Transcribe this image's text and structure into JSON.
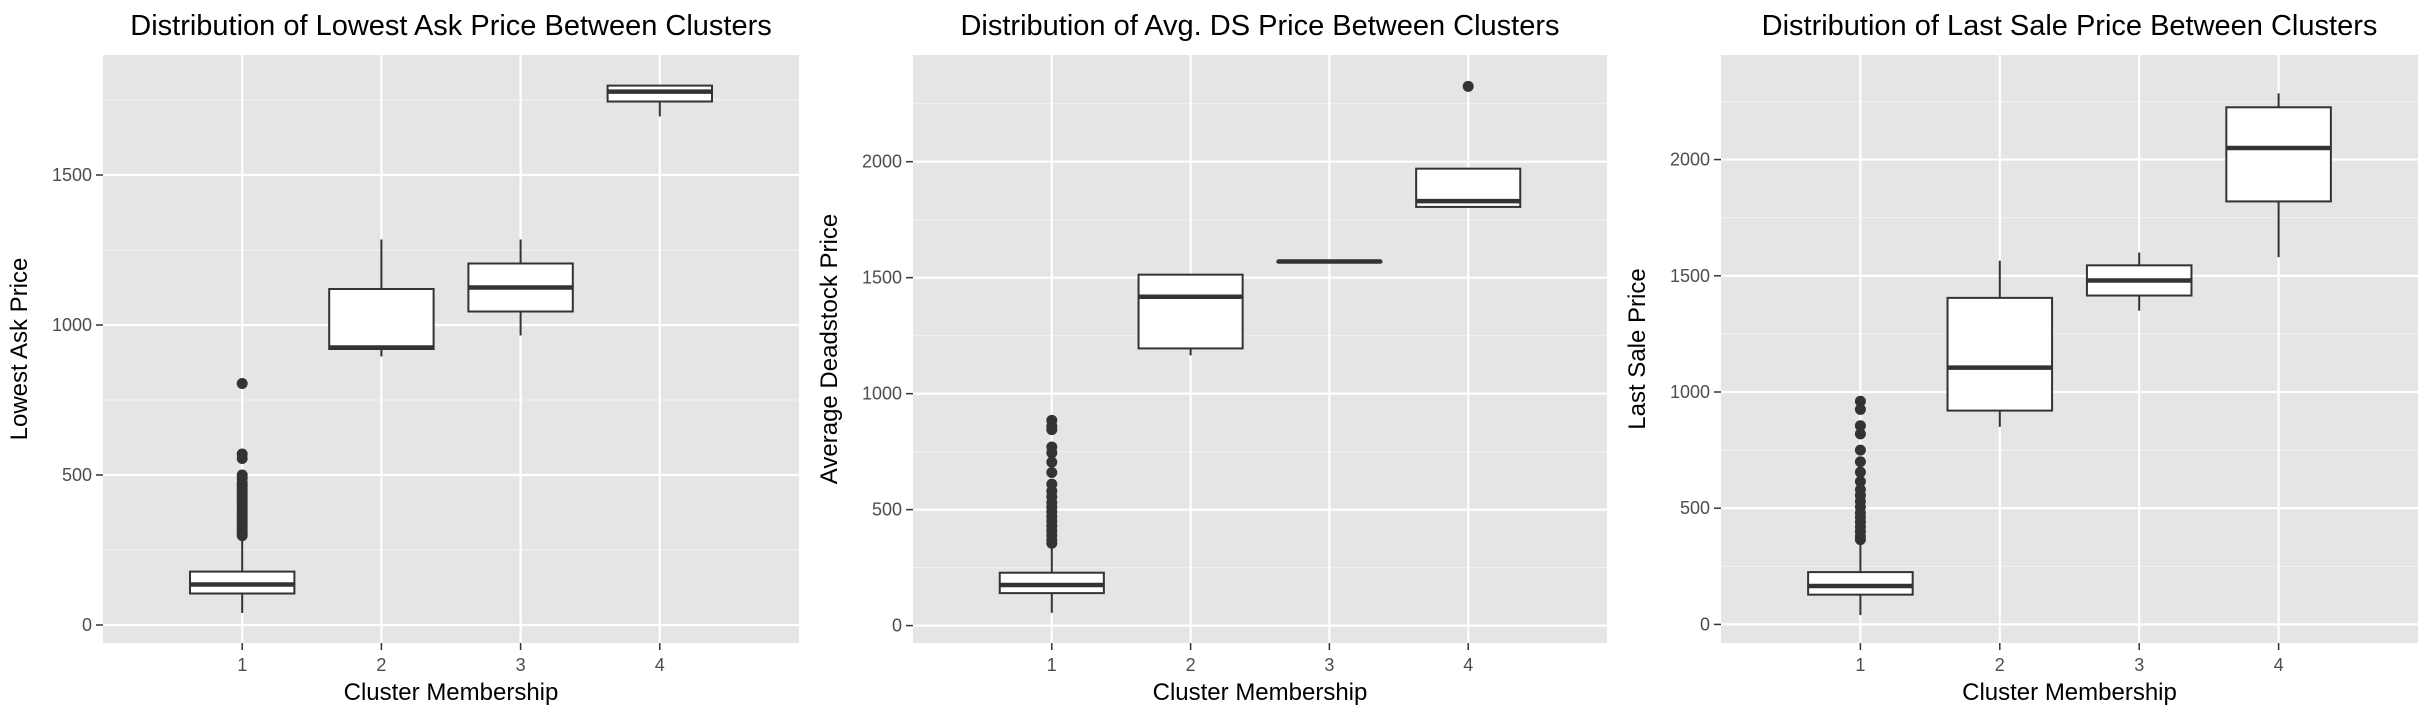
{
  "chart_data": [
    {
      "type": "boxplot",
      "title": "Distribution of Lowest Ask Price Between Clusters",
      "xlabel": "Cluster Membership",
      "ylabel": "Lowest Ask Price",
      "categories": [
        "1",
        "2",
        "3",
        "4"
      ],
      "ylim": [
        -60,
        1900
      ],
      "yticks": [
        0,
        500,
        1000,
        1500
      ],
      "grid": true,
      "boxes": [
        {
          "category": "1",
          "whisker_low": 40,
          "q1": 105,
          "median": 135,
          "q3": 178,
          "whisker_high": 290,
          "outliers": [
            805,
            570,
            555,
            500,
            490,
            475,
            465,
            455,
            445,
            435,
            425,
            415,
            405,
            395,
            385,
            375,
            365,
            355,
            345,
            335,
            325,
            315,
            305,
            298
          ]
        },
        {
          "category": "2",
          "whisker_low": 895,
          "q1": 920,
          "median": 925,
          "q3": 1120,
          "whisker_high": 1285,
          "outliers": []
        },
        {
          "category": "3",
          "whisker_low": 965,
          "q1": 1045,
          "median": 1125,
          "q3": 1205,
          "whisker_high": 1285,
          "outliers": []
        },
        {
          "category": "4",
          "whisker_low": 1695,
          "q1": 1745,
          "median": 1778,
          "q3": 1798,
          "whisker_high": 1798,
          "outliers": []
        }
      ]
    },
    {
      "type": "boxplot",
      "title": "Distribution of Avg. DS Price Between Clusters",
      "xlabel": "Cluster Membership",
      "ylabel": "Average Deadstock Price",
      "categories": [
        "1",
        "2",
        "3",
        "4"
      ],
      "ylim": [
        -75,
        2460
      ],
      "yticks": [
        0,
        500,
        1000,
        1500,
        2000
      ],
      "grid": true,
      "boxes": [
        {
          "category": "1",
          "whisker_low": 55,
          "q1": 140,
          "median": 175,
          "q3": 228,
          "whisker_high": 340,
          "outliers": [
            885,
            860,
            845,
            770,
            745,
            705,
            660,
            610,
            580,
            555,
            530,
            510,
            490,
            470,
            450,
            430,
            410,
            390,
            370,
            355
          ]
        },
        {
          "category": "2",
          "whisker_low": 1165,
          "q1": 1195,
          "median": 1418,
          "q3": 1513,
          "whisker_high": 1513,
          "outliers": []
        },
        {
          "category": "3",
          "whisker_low": 1570,
          "q1": 1570,
          "median": 1570,
          "q3": 1570,
          "whisker_high": 1570,
          "outliers": []
        },
        {
          "category": "4",
          "whisker_low": 1805,
          "q1": 1805,
          "median": 1830,
          "q3": 1970,
          "whisker_high": 1970,
          "outliers": [
            2325
          ]
        }
      ]
    },
    {
      "type": "boxplot",
      "title": "Distribution of Last Sale Price Between Clusters",
      "xlabel": "Cluster Membership",
      "ylabel": "Last Sale Price",
      "categories": [
        "1",
        "2",
        "3",
        "4"
      ],
      "ylim": [
        -80,
        2450
      ],
      "yticks": [
        0,
        500,
        1000,
        1500,
        2000
      ],
      "grid": true,
      "boxes": [
        {
          "category": "1",
          "whisker_low": 40,
          "q1": 128,
          "median": 165,
          "q3": 225,
          "whisker_high": 345,
          "outliers": [
            960,
            925,
            855,
            820,
            750,
            700,
            655,
            615,
            580,
            555,
            530,
            505,
            480,
            460,
            440,
            420,
            400,
            380,
            365
          ]
        },
        {
          "category": "2",
          "whisker_low": 850,
          "q1": 920,
          "median": 1105,
          "q3": 1405,
          "whisker_high": 1565,
          "outliers": []
        },
        {
          "category": "3",
          "whisker_low": 1350,
          "q1": 1415,
          "median": 1480,
          "q3": 1545,
          "whisker_high": 1600,
          "outliers": []
        },
        {
          "category": "4",
          "whisker_low": 1580,
          "q1": 1820,
          "median": 2050,
          "q3": 2225,
          "whisker_high": 2285,
          "outliers": []
        }
      ]
    }
  ],
  "colors": {
    "panel_background": "#e5e5e5",
    "grid_major": "#ffffff",
    "grid_minor": "#f0f0f0",
    "box_fill": "#ffffff",
    "box_stroke": "#333333",
    "point": "#333333",
    "axis_text": "#4d4d4d",
    "title_text": "#000000"
  }
}
